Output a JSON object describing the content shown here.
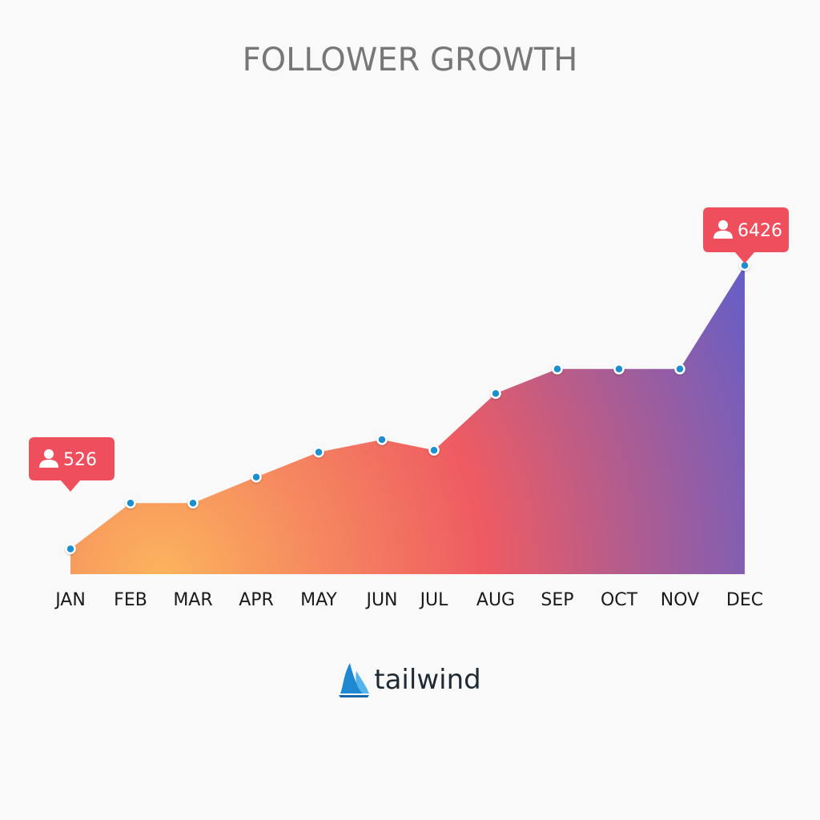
{
  "chart_data": {
    "type": "area",
    "title": "FOLLOWER GROWTH",
    "categories": [
      "JAN",
      "FEB",
      "MAR",
      "APR",
      "MAY",
      "JUN",
      "JUL",
      "AUG",
      "SEP",
      "OCT",
      "NOV",
      "DEC"
    ],
    "values": [
      526,
      1480,
      1480,
      2020,
      2540,
      2800,
      2580,
      3760,
      4270,
      4270,
      4270,
      6426
    ],
    "xlabel": "",
    "ylabel": "",
    "grid": false,
    "legend": "none",
    "annotations": [
      {
        "category": "JAN",
        "text": "526"
      },
      {
        "category": "DEC",
        "text": "6426"
      }
    ],
    "colors": {
      "gradient_start": "#fcb45d",
      "gradient_mid": "#ee5b62",
      "gradient_end": "#4a5fdb",
      "marker": "#1c8fd0",
      "callout": "#ef4f5d"
    }
  },
  "callouts": {
    "start_value": "526",
    "end_value": "6426",
    "icon": "user-icon"
  },
  "brand": {
    "name": "tailwind",
    "icon": "sail-icon",
    "color": "#1e88d2"
  }
}
